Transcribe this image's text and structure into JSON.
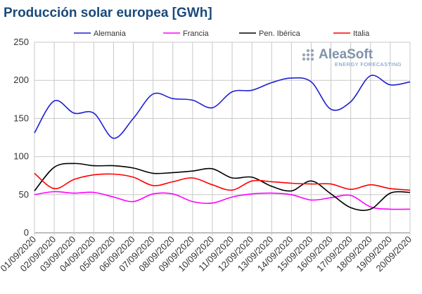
{
  "colors": {
    "title": "#1a4a7a",
    "grid": "#c8c8c8",
    "axis": "#7f7f7f",
    "logo_dots": "#9aa6b8",
    "logo_text": "#7f93aa",
    "logo_sub": "#6a8fc0"
  },
  "logo": {
    "name": "AleaSoft",
    "tagline": "ENERGY FORECASTING",
    "icon": "dot-grid-icon"
  },
  "chart_data": {
    "type": "line",
    "title": "Producción solar europea [GWh]",
    "xlabel": "",
    "ylabel": "",
    "ylim": [
      0,
      250
    ],
    "yticks": [
      0,
      50,
      100,
      150,
      200,
      250
    ],
    "grid": true,
    "legend_position": "top",
    "x": [
      "01/09/2020",
      "02/09/2020",
      "03/09/2020",
      "04/09/2020",
      "05/09/2020",
      "06/09/2020",
      "07/09/2020",
      "08/09/2020",
      "09/09/2020",
      "10/09/2020",
      "11/09/2020",
      "12/09/2020",
      "13/09/2020",
      "14/09/2020",
      "15/09/2020",
      "16/09/2020",
      "17/09/2020",
      "18/09/2020",
      "19/09/2020",
      "20/09/2020"
    ],
    "series": [
      {
        "name": "Alemania",
        "color": "#1f1fd6",
        "values": [
          131,
          173,
          157,
          157,
          124,
          150,
          182,
          176,
          174,
          164,
          185,
          187,
          197,
          203,
          198,
          162,
          172,
          206,
          194,
          198
        ]
      },
      {
        "name": "Francia",
        "color": "#ff00ff",
        "values": [
          50,
          54,
          52,
          53,
          47,
          41,
          51,
          51,
          41,
          39,
          47,
          51,
          52,
          50,
          43,
          46,
          49,
          34,
          31,
          31
        ]
      },
      {
        "name": "Pen. Ibérica",
        "color": "#000000",
        "values": [
          55,
          86,
          91,
          88,
          88,
          85,
          78,
          79,
          81,
          84,
          72,
          73,
          61,
          55,
          68,
          51,
          33,
          31,
          52,
          53
        ]
      },
      {
        "name": "Italia",
        "color": "#ff0000",
        "values": [
          78,
          58,
          70,
          76,
          77,
          73,
          62,
          67,
          72,
          63,
          56,
          68,
          67,
          65,
          64,
          64,
          57,
          63,
          58,
          56
        ]
      }
    ]
  }
}
